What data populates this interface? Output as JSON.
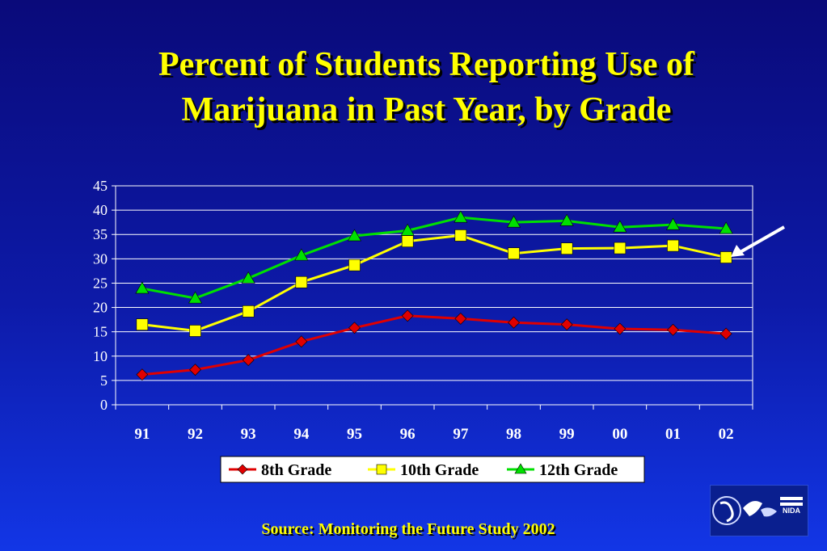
{
  "slide": {
    "title_line1": "Percent of Students Reporting Use of",
    "title_line2": "Marijuana in Past Year, by Grade",
    "source": "Source: Monitoring the Future Study 2002"
  },
  "logo": {
    "icon": "agency-logo-icon",
    "text_right": "NIDA"
  },
  "chart_data": {
    "type": "line",
    "title": "",
    "xlabel": "",
    "ylabel": "",
    "categories": [
      "91",
      "92",
      "93",
      "94",
      "95",
      "96",
      "97",
      "98",
      "99",
      "00",
      "01",
      "02"
    ],
    "ylim": [
      0,
      45
    ],
    "yticks": [
      0,
      5,
      10,
      15,
      20,
      25,
      30,
      35,
      40,
      45
    ],
    "grid": true,
    "legend_position": "bottom",
    "series": [
      {
        "name": "8th Grade",
        "color": "#e00000",
        "marker": "diamond",
        "values": [
          6.2,
          7.2,
          9.2,
          13.0,
          15.8,
          18.3,
          17.7,
          16.9,
          16.5,
          15.6,
          15.4,
          14.6
        ]
      },
      {
        "name": "10th Grade",
        "color": "#ffff00",
        "marker": "square",
        "values": [
          16.5,
          15.2,
          19.2,
          25.2,
          28.7,
          33.6,
          34.8,
          31.1,
          32.1,
          32.2,
          32.7,
          30.3
        ]
      },
      {
        "name": "12th Grade",
        "color": "#00e000",
        "marker": "triangle",
        "values": [
          23.9,
          21.9,
          26.0,
          30.7,
          34.7,
          35.8,
          38.5,
          37.5,
          37.8,
          36.5,
          37.0,
          36.2
        ]
      }
    ],
    "annotation": {
      "type": "arrow",
      "color": "#ffffff",
      "points_to": "10th Grade 02"
    }
  }
}
